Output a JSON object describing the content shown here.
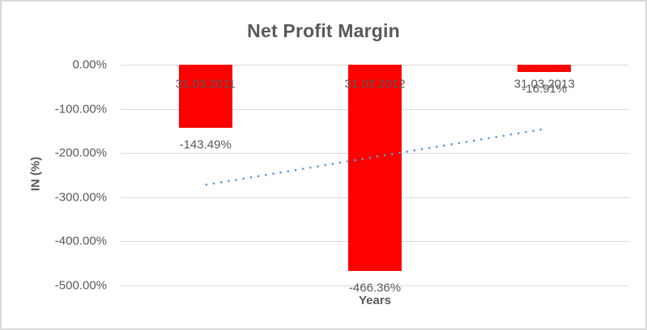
{
  "chart_data": {
    "type": "bar",
    "title": "Net Profit Margin",
    "xlabel": "Years",
    "ylabel": "IN (%)",
    "categories": [
      "31.03.2011",
      "31.03.2012",
      "31.03.2013"
    ],
    "values": [
      -143.49,
      -466.36,
      -16.91
    ],
    "data_labels": [
      "-143.49%",
      "-466.36%",
      "-16.91%"
    ],
    "ytick_labels": [
      "0.00%",
      "-100.00%",
      "-200.00%",
      "-300.00%",
      "-400.00%",
      "-500.00%"
    ],
    "ytick_values": [
      0,
      -100,
      -200,
      -300,
      -400,
      -500
    ],
    "ylim": [
      -500,
      0
    ],
    "grid": true,
    "legend": "none",
    "colors": {
      "bar": "#ff0000",
      "text": "#595959",
      "gridline": "#d9d9d9",
      "trendline": "#5b9bd5",
      "border": "#d9d9d9"
    },
    "trendline": {
      "type": "linear",
      "style": "dotted",
      "endpoint_values_pct": [
        -272.2,
        -145.6
      ]
    }
  }
}
